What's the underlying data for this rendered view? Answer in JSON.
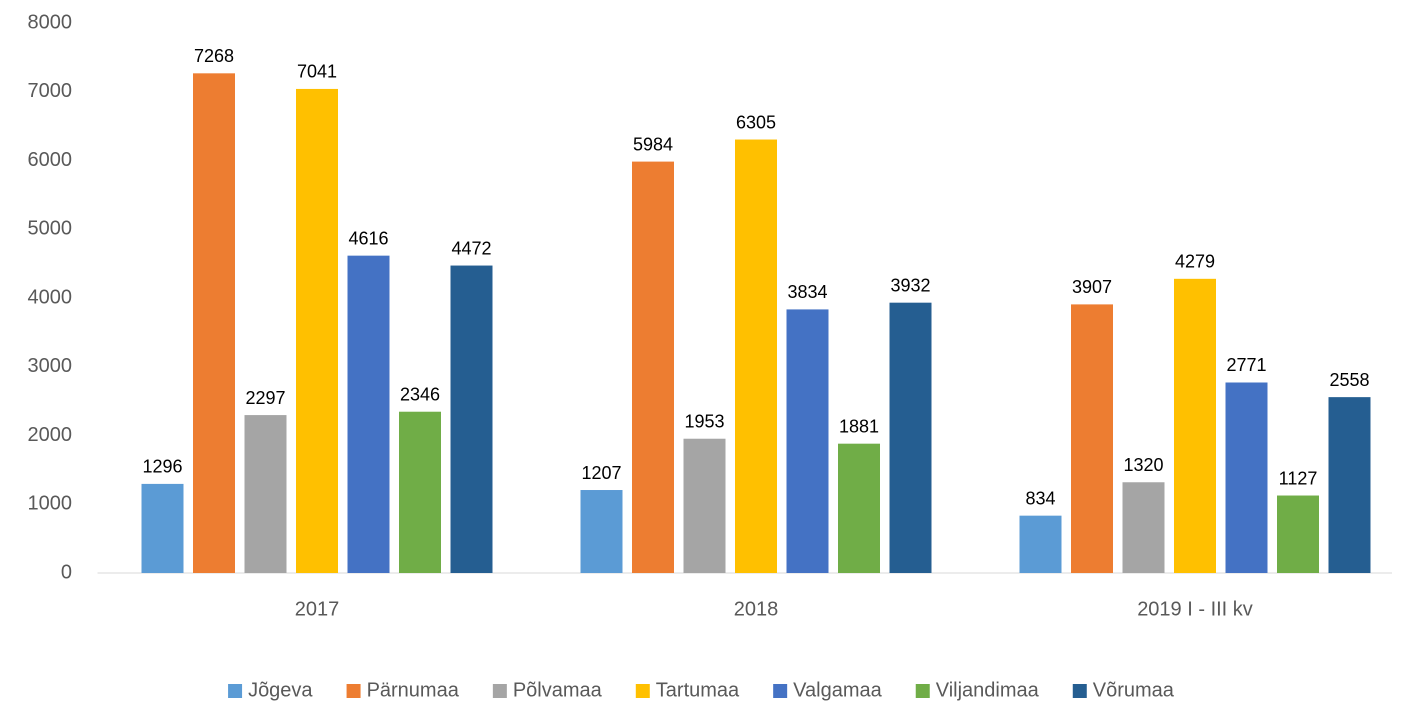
{
  "chart_data": {
    "type": "bar",
    "categories": [
      "2017",
      "2018",
      "2019 I - III kv"
    ],
    "series": [
      {
        "name": "Jõgeva",
        "color": "#5b9bd5",
        "values": [
          1296,
          1207,
          834
        ]
      },
      {
        "name": "Pärnumaa",
        "color": "#ed7d31",
        "values": [
          7268,
          5984,
          3907
        ]
      },
      {
        "name": "Põlvamaa",
        "color": "#a5a5a5",
        "values": [
          2297,
          1953,
          1320
        ]
      },
      {
        "name": "Tartumaa",
        "color": "#ffc000",
        "values": [
          7041,
          6305,
          4279
        ]
      },
      {
        "name": "Valgamaa",
        "color": "#4472c4",
        "values": [
          4616,
          3834,
          2771
        ]
      },
      {
        "name": "Viljandimaa",
        "color": "#70ad47",
        "values": [
          2346,
          1881,
          1127
        ]
      },
      {
        "name": "Võrumaa",
        "color": "#255e91",
        "values": [
          4472,
          3932,
          2558
        ]
      }
    ],
    "ylim": [
      0,
      8000
    ],
    "yticks": [
      0,
      1000,
      2000,
      3000,
      4000,
      5000,
      6000,
      7000,
      8000
    ],
    "grid": false,
    "legend": "bottom"
  }
}
